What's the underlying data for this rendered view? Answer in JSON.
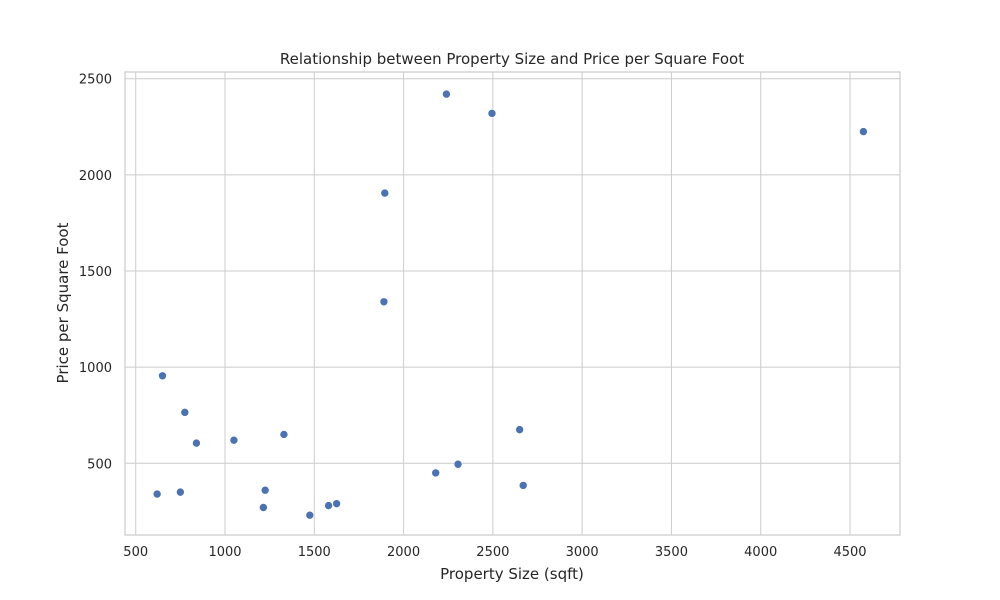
{
  "chart_data": {
    "type": "scatter",
    "title": "Relationship between Property Size and Price per Square Foot",
    "xlabel": "Property Size (sqft)",
    "ylabel": "Price per Square Foot",
    "xlim": [
      440,
      4780
    ],
    "ylim": [
      127,
      2535
    ],
    "xticks": [
      500,
      1000,
      1500,
      2000,
      2500,
      3000,
      3500,
      4000,
      4500
    ],
    "yticks": [
      500,
      1000,
      1500,
      2000,
      2500
    ],
    "grid": true,
    "color": "#4c72b0",
    "points": [
      {
        "x": 2240,
        "y": 2420
      },
      {
        "x": 2495,
        "y": 2320
      },
      {
        "x": 4575,
        "y": 2225
      },
      {
        "x": 1895,
        "y": 1905
      },
      {
        "x": 1890,
        "y": 1340
      },
      {
        "x": 650,
        "y": 955
      },
      {
        "x": 775,
        "y": 765
      },
      {
        "x": 840,
        "y": 605
      },
      {
        "x": 1050,
        "y": 620
      },
      {
        "x": 1330,
        "y": 650
      },
      {
        "x": 2650,
        "y": 675
      },
      {
        "x": 2305,
        "y": 495
      },
      {
        "x": 2180,
        "y": 450
      },
      {
        "x": 2670,
        "y": 385
      },
      {
        "x": 620,
        "y": 340
      },
      {
        "x": 750,
        "y": 350
      },
      {
        "x": 1225,
        "y": 360
      },
      {
        "x": 1215,
        "y": 270
      },
      {
        "x": 1580,
        "y": 280
      },
      {
        "x": 1625,
        "y": 290
      },
      {
        "x": 1475,
        "y": 230
      }
    ]
  }
}
